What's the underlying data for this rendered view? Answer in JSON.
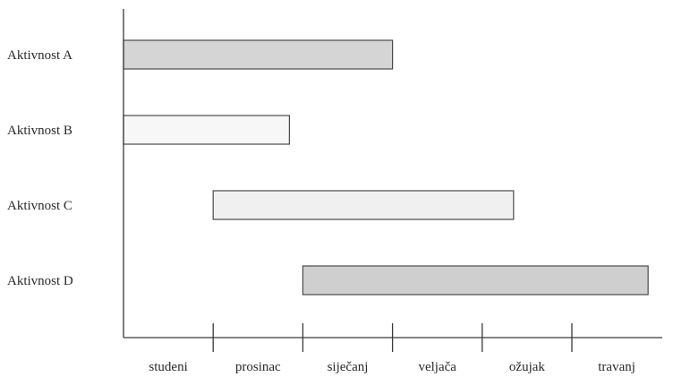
{
  "chart_data": {
    "type": "gantt",
    "title": "",
    "xlabel": "",
    "ylabel": "",
    "categories": [
      "studeni",
      "prosinac",
      "siječanj",
      "veljača",
      "ožujak",
      "travanj"
    ],
    "xlim": [
      0,
      6
    ],
    "grid": false,
    "tasks": [
      {
        "name": "Aktivnost A",
        "start": 0.0,
        "end": 3.0,
        "color": "#d5d5d5"
      },
      {
        "name": "Aktivnost B",
        "start": 0.0,
        "end": 1.85,
        "color": "#f7f7f7"
      },
      {
        "name": "Aktivnost C",
        "start": 1.0,
        "end": 4.35,
        "color": "#f0f0f0"
      },
      {
        "name": "Aktivnost D",
        "start": 2.0,
        "end": 5.85,
        "color": "#cfcfcf"
      }
    ]
  }
}
